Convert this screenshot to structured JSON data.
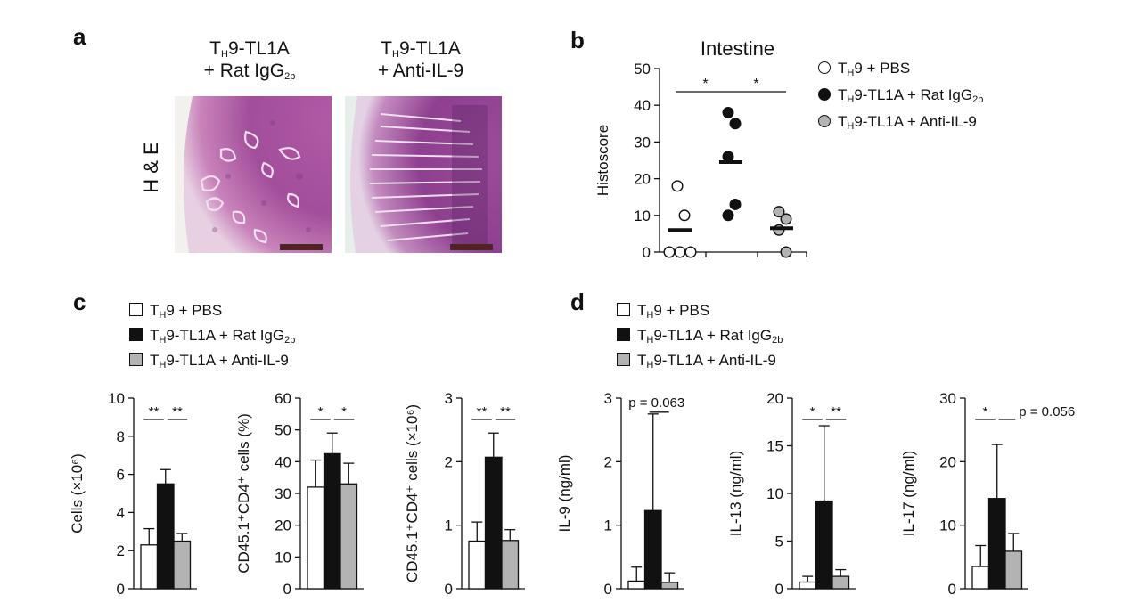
{
  "panels": {
    "a": "a",
    "b": "b",
    "c": "c",
    "d": "d"
  },
  "panel_a": {
    "col1_line1": "T",
    "col1_sub1": "H",
    "col1_line1b": "9-TL1A",
    "col1_line2": "+ Rat IgG",
    "col1_sub2": "2b",
    "col2_line1": "T",
    "col2_sub1": "H",
    "col2_line1b": "9-TL1A",
    "col2_line2": "+ Anti-IL-9",
    "row_label": "H & E"
  },
  "legend_b": [
    {
      "pre": "T",
      "sub": "H",
      "post": "9 + PBS",
      "sub2": "",
      "fill": "#ffffff"
    },
    {
      "pre": "T",
      "sub": "H",
      "post": "9-TL1A + Rat IgG",
      "sub2": "2b",
      "fill": "#111111"
    },
    {
      "pre": "T",
      "sub": "H",
      "post": "9-TL1A + Anti-IL-9",
      "sub2": "",
      "fill": "#b3b3b3"
    }
  ],
  "legend_c": [
    {
      "pre": "T",
      "sub": "H",
      "post": "9 + PBS",
      "sub2": "",
      "fill": "#ffffff"
    },
    {
      "pre": "T",
      "sub": "H",
      "post": "9-TL1A + Rat IgG",
      "sub2": "2b",
      "fill": "#111111"
    },
    {
      "pre": "T",
      "sub": "H",
      "post": "9-TL1A + Anti-IL-9",
      "sub2": "",
      "fill": "#b3b3b3"
    }
  ],
  "legend_d": [
    {
      "pre": "T",
      "sub": "H",
      "post": "9 + PBS",
      "sub2": "",
      "fill": "#ffffff"
    },
    {
      "pre": "T",
      "sub": "H",
      "post": "9-TL1A + Rat IgG",
      "sub2": "2b",
      "fill": "#111111"
    },
    {
      "pre": "T",
      "sub": "H",
      "post": "9-TL1A + Anti-IL-9",
      "sub2": "",
      "fill": "#b3b3b3"
    }
  ],
  "chart_data": [
    {
      "id": "b",
      "type": "scatter",
      "title": "Intestine",
      "ylabel": "Histoscore",
      "ylim": [
        0,
        50
      ],
      "yticks": [
        0,
        10,
        20,
        30,
        40,
        50
      ],
      "groups": [
        {
          "name": "TH9 + PBS",
          "fill": "#ffffff",
          "points": [
            18,
            10,
            0,
            0,
            0
          ],
          "mean": 6
        },
        {
          "name": "TH9-TL1A + Rat IgG2b",
          "fill": "#111111",
          "points": [
            38,
            35,
            26,
            13,
            10
          ],
          "mean": 24.5
        },
        {
          "name": "TH9-TL1A + Anti-IL-9",
          "fill": "#b3b3b3",
          "points": [
            11,
            9,
            6,
            0
          ],
          "mean": 6.5
        }
      ],
      "annotations": [
        {
          "from": 0,
          "to": 1,
          "label": "*"
        },
        {
          "from": 1,
          "to": 2,
          "label": "*"
        }
      ]
    },
    {
      "id": "c1",
      "type": "bar",
      "ylabel": "Cells (×10⁶)",
      "ylim": [
        0,
        10
      ],
      "yticks": [
        0,
        2,
        4,
        6,
        8,
        10
      ],
      "categories": [
        "TH9 + PBS",
        "TH9-TL1A + Rat IgG2b",
        "TH9-TL1A + Anti-IL-9"
      ],
      "values": [
        2.3,
        5.5,
        2.5
      ],
      "errors": [
        0.85,
        0.75,
        0.4
      ],
      "annotations": [
        {
          "from": 0,
          "to": 1,
          "label": "**"
        },
        {
          "from": 1,
          "to": 2,
          "label": "**"
        }
      ]
    },
    {
      "id": "c2",
      "type": "bar",
      "ylabel": "CD45.1⁺CD4⁺ cells (%)",
      "ylim": [
        0,
        60
      ],
      "yticks": [
        0,
        10,
        20,
        30,
        40,
        50,
        60
      ],
      "categories": [
        "TH9 + PBS",
        "TH9-TL1A + Rat IgG2b",
        "TH9-TL1A + Anti-IL-9"
      ],
      "values": [
        32,
        42.5,
        33
      ],
      "errors": [
        8.5,
        6.5,
        6.5
      ],
      "annotations": [
        {
          "from": 0,
          "to": 1,
          "label": "*"
        },
        {
          "from": 1,
          "to": 2,
          "label": "*"
        }
      ]
    },
    {
      "id": "c3",
      "type": "bar",
      "ylabel": "CD45.1⁺CD4⁺ cells (×10⁶)",
      "ylim": [
        0,
        3
      ],
      "yticks": [
        0,
        1,
        2,
        3
      ],
      "categories": [
        "TH9 + PBS",
        "TH9-TL1A + Rat IgG2b",
        "TH9-TL1A + Anti-IL-9"
      ],
      "values": [
        0.75,
        2.07,
        0.76
      ],
      "errors": [
        0.3,
        0.38,
        0.17
      ],
      "annotations": [
        {
          "from": 0,
          "to": 1,
          "label": "**"
        },
        {
          "from": 1,
          "to": 2,
          "label": "**"
        }
      ]
    },
    {
      "id": "d1",
      "type": "bar",
      "ylabel": "IL-9 (ng/ml)",
      "ylim": [
        0,
        3
      ],
      "yticks": [
        0,
        1,
        2,
        3
      ],
      "categories": [
        "TH9 + PBS",
        "TH9-TL1A + Rat IgG2b",
        "TH9-TL1A + Anti-IL-9"
      ],
      "values": [
        0.12,
        1.23,
        0.1
      ],
      "errors": [
        0.22,
        1.52,
        0.15
      ],
      "annotations": [
        {
          "from": 1,
          "to": 1.5,
          "label": "p = 0.063",
          "style": "p"
        }
      ]
    },
    {
      "id": "d2",
      "type": "bar",
      "ylabel": "IL-13 (ng/ml)",
      "ylim": [
        0,
        20
      ],
      "yticks": [
        0,
        5,
        10,
        15,
        20
      ],
      "categories": [
        "TH9 + PBS",
        "TH9-TL1A + Rat IgG2b",
        "TH9-TL1A + Anti-IL-9"
      ],
      "values": [
        0.7,
        9.2,
        1.3
      ],
      "errors": [
        0.6,
        7.9,
        0.7
      ],
      "annotations": [
        {
          "from": 0,
          "to": 1,
          "label": "*"
        },
        {
          "from": 1,
          "to": 2,
          "label": "**"
        }
      ]
    },
    {
      "id": "d3",
      "type": "bar",
      "ylabel": "IL-17 (ng/ml)",
      "ylim": [
        0,
        30
      ],
      "yticks": [
        0,
        10,
        20,
        30
      ],
      "categories": [
        "TH9 + PBS",
        "TH9-TL1A + Rat IgG2b",
        "TH9-TL1A + Anti-IL-9"
      ],
      "values": [
        3.5,
        14.2,
        5.9
      ],
      "errors": [
        3.3,
        8.5,
        2.8
      ],
      "annotations": [
        {
          "from": 0,
          "to": 1,
          "label": "*"
        },
        {
          "from": 1,
          "to": 2,
          "label": "p = 0.056",
          "style": "p"
        }
      ]
    }
  ]
}
